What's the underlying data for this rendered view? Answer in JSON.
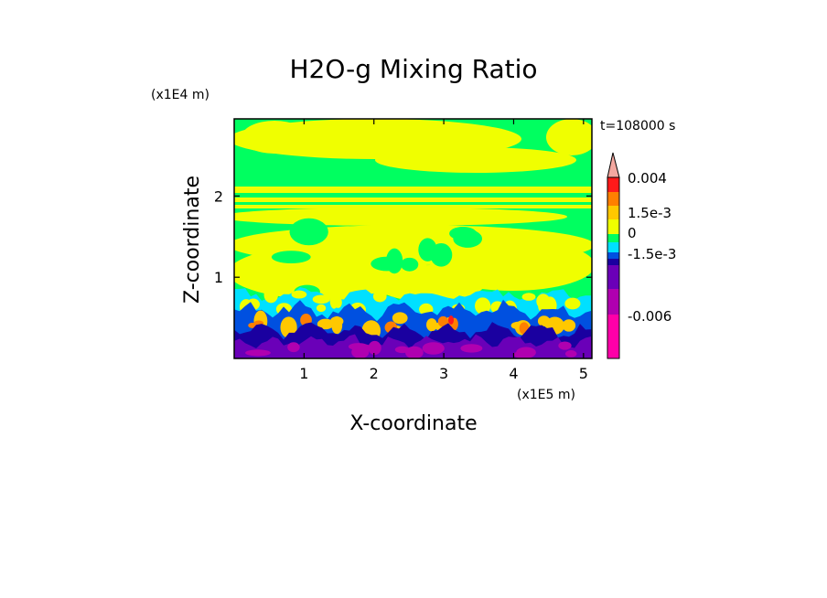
{
  "chart_data": {
    "type": "heatmap",
    "title": "H2O-g Mixing Ratio",
    "xlabel": "X-coordinate",
    "ylabel": "Z-coordinate",
    "x_multiplier": "(x1E5 m)",
    "y_multiplier": "(x1E4 m)",
    "time_label": "t=108000 s",
    "xlim": [
      0,
      5.12
    ],
    "ylim": [
      0,
      2.95
    ],
    "x_ticks": [
      1,
      2,
      3,
      4,
      5
    ],
    "y_ticks": [
      1,
      2
    ],
    "x_tick_labels": [
      "1",
      "2",
      "3",
      "4",
      "5"
    ],
    "y_tick_labels": [
      "1",
      "2"
    ],
    "colorbar": {
      "labels": [
        {
          "text": "0.004",
          "level": 0.004
        },
        {
          "text": "1.5e-3",
          "level": 0.0015
        },
        {
          "text": "0",
          "level": 0
        },
        {
          "text": "-1.5e-3",
          "level": -0.0015
        },
        {
          "text": "-0.006",
          "level": -0.006
        }
      ],
      "colors_top_to_bottom": [
        "#f4a8a0",
        "#ff1a1a",
        "#ff7f00",
        "#ffc800",
        "#f0ff00",
        "#00ff60",
        "#00e0ff",
        "#0050e0",
        "#1a00a0",
        "#6a00b8",
        "#b000b0",
        "#ff00a8"
      ],
      "extend": "max"
    },
    "field_levels": {
      "upper": "yellow/green (near 0)",
      "lower": "orange, cyan, blue, purple, magenta (-0.006 to 1.5e-3)"
    }
  }
}
